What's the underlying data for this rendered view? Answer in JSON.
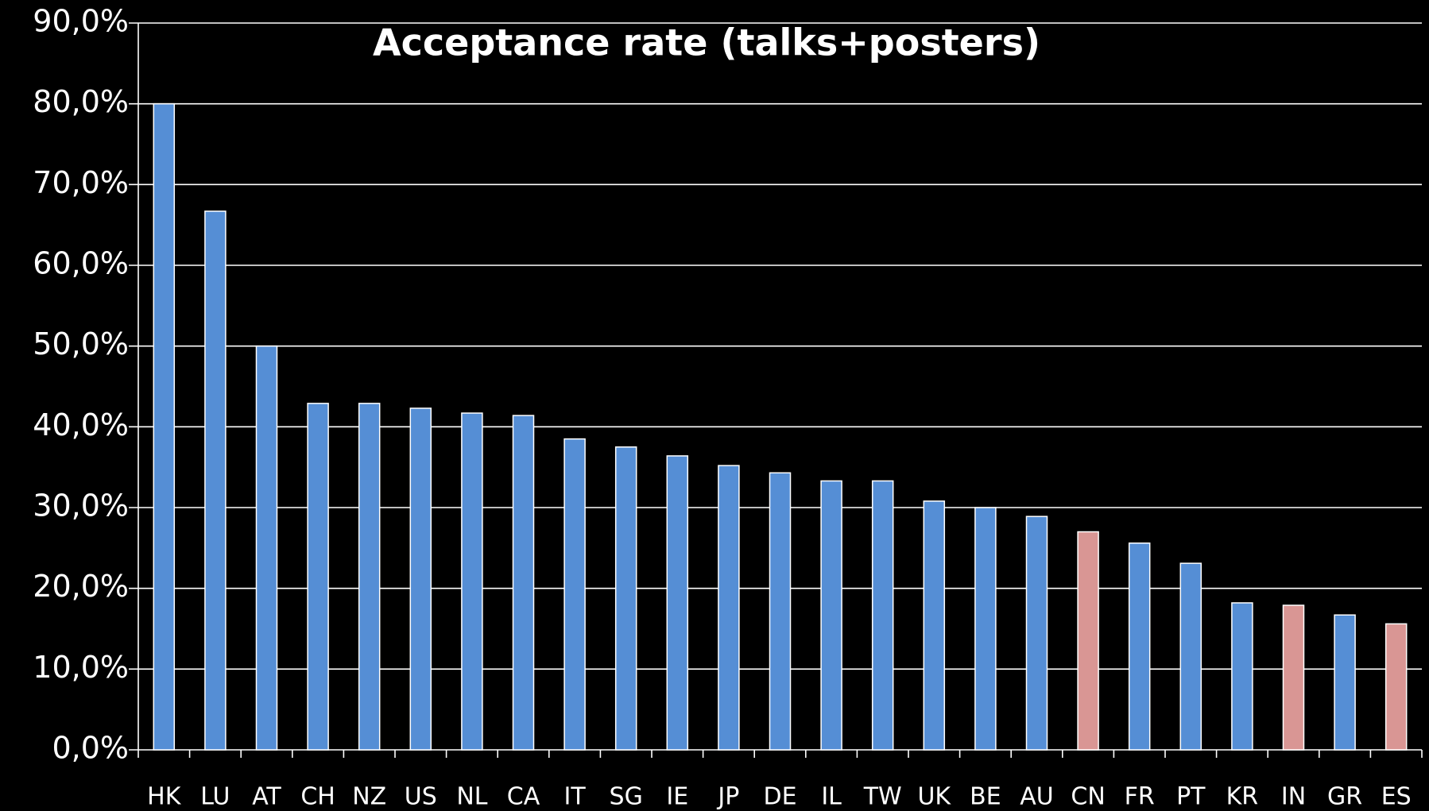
{
  "chart_data": {
    "type": "bar",
    "title": "Acceptance rate (talks+posters)",
    "categories": [
      "HK",
      "LU",
      "AT",
      "CH",
      "NZ",
      "US",
      "NL",
      "CA",
      "IT",
      "SG",
      "IE",
      "JP",
      "DE",
      "IL",
      "TW",
      "UK",
      "BE",
      "AU",
      "CN",
      "FR",
      "PT",
      "KR",
      "IN",
      "GR",
      "ES"
    ],
    "values": [
      80.0,
      66.7,
      50.0,
      42.9,
      42.9,
      42.3,
      41.7,
      41.4,
      38.5,
      37.5,
      36.4,
      35.2,
      34.3,
      33.3,
      33.3,
      30.8,
      30.0,
      28.9,
      27.0,
      25.6,
      23.1,
      18.2,
      17.9,
      16.7,
      15.6
    ],
    "colors": [
      "#558ed5",
      "#558ed5",
      "#558ed5",
      "#558ed5",
      "#558ed5",
      "#558ed5",
      "#558ed5",
      "#558ed5",
      "#558ed5",
      "#558ed5",
      "#558ed5",
      "#558ed5",
      "#558ed5",
      "#558ed5",
      "#558ed5",
      "#558ed5",
      "#558ed5",
      "#558ed5",
      "#d99694",
      "#558ed5",
      "#558ed5",
      "#558ed5",
      "#d99694",
      "#558ed5",
      "#d99694"
    ],
    "ylim": [
      0,
      90
    ],
    "yticks": [
      {
        "value": 0,
        "label": "0,0%"
      },
      {
        "value": 10,
        "label": "10,0%"
      },
      {
        "value": 20,
        "label": "20,0%"
      },
      {
        "value": 30,
        "label": "30,0%"
      },
      {
        "value": 40,
        "label": "40,0%"
      },
      {
        "value": 50,
        "label": "50,0%"
      },
      {
        "value": 60,
        "label": "60,0%"
      },
      {
        "value": 70,
        "label": "70,0%"
      },
      {
        "value": 80,
        "label": "80,0%"
      },
      {
        "value": 90,
        "label": "90,0%"
      }
    ],
    "grid": true
  }
}
